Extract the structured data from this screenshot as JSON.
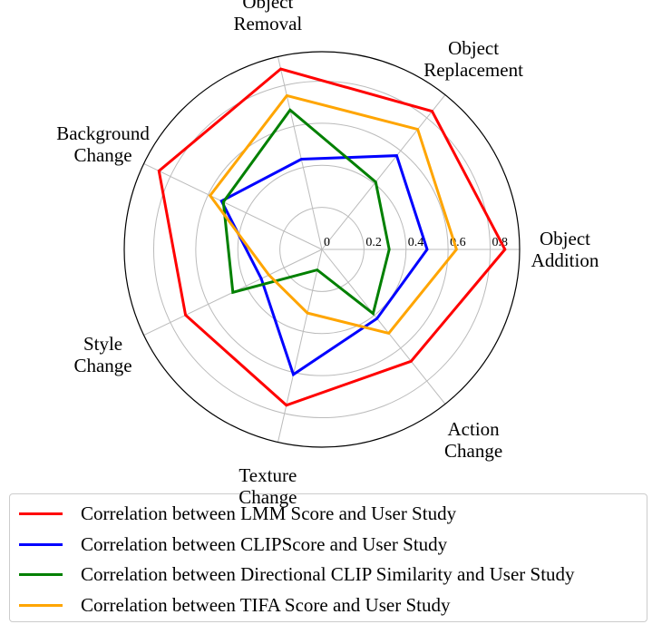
{
  "chart_data": {
    "type": "radar",
    "categories": [
      "Object Addition",
      "Object Replacement",
      "Object Removal",
      "Background Change",
      "Style Change",
      "Texture Change",
      "Action Change"
    ],
    "ylim": [
      0,
      0.94
    ],
    "yticks": [
      0,
      0.2,
      0.4,
      0.6,
      0.8
    ],
    "grid": true,
    "legend": "lower center",
    "series": [
      {
        "name": "Correlation between LMM Score and User Study",
        "color": "#ff0000",
        "values": [
          0.87,
          0.84,
          0.88,
          0.86,
          0.72,
          0.76,
          0.68
        ]
      },
      {
        "name": "Correlation between CLIPScore and User Study",
        "color": "#0000ff",
        "values": [
          0.5,
          0.57,
          0.44,
          0.53,
          0.32,
          0.61,
          0.42
        ]
      },
      {
        "name": "Correlation between Directional CLIP Similarity and User Study",
        "color": "#008000",
        "values": [
          0.32,
          0.41,
          0.68,
          0.52,
          0.47,
          0.1,
          0.39
        ]
      },
      {
        "name": "Correlation between TIFA Score and User Study",
        "color": "#ffa500",
        "values": [
          0.64,
          0.73,
          0.75,
          0.59,
          0.28,
          0.31,
          0.51
        ]
      }
    ]
  }
}
